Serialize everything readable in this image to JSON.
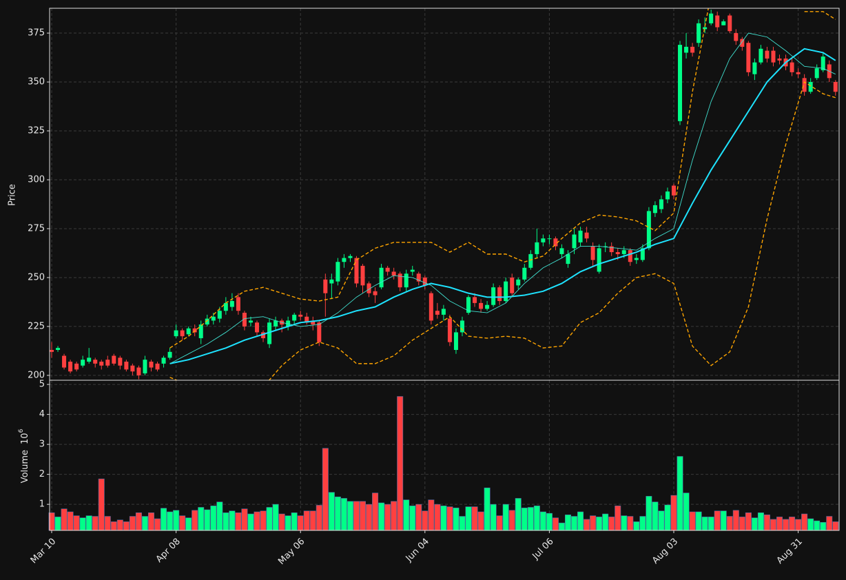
{
  "chart_data": {
    "type": "candlestick",
    "ylabel": "Price",
    "grid": true,
    "up_color": "#00ff88",
    "down_color": "#ff4040",
    "ylim": [
      197.5,
      387.7
    ],
    "yticks": [
      200,
      225,
      250,
      275,
      300,
      325,
      350,
      375
    ],
    "categories": [
      "Mar 10",
      null,
      null,
      null,
      null,
      null,
      null,
      null,
      null,
      null,
      null,
      null,
      null,
      null,
      null,
      null,
      null,
      null,
      null,
      null,
      "Apr 08",
      null,
      null,
      null,
      null,
      null,
      null,
      null,
      null,
      null,
      null,
      null,
      null,
      null,
      null,
      null,
      null,
      null,
      null,
      null,
      "May 06",
      null,
      null,
      null,
      null,
      null,
      null,
      null,
      null,
      null,
      null,
      null,
      null,
      null,
      null,
      null,
      null,
      null,
      null,
      null,
      "Jun 04",
      null,
      null,
      null,
      null,
      null,
      null,
      null,
      null,
      null,
      null,
      null,
      null,
      null,
      null,
      null,
      null,
      null,
      null,
      null,
      "Jul 06",
      null,
      null,
      null,
      null,
      null,
      null,
      null,
      null,
      null,
      null,
      null,
      null,
      null,
      null,
      null,
      null,
      null,
      null,
      null,
      "Aug 03",
      null,
      null,
      null,
      null,
      null,
      null,
      null,
      null,
      null,
      null,
      null,
      null,
      null,
      null,
      null,
      null,
      null,
      null,
      null,
      "Aug 31",
      null,
      null,
      null,
      null,
      null,
      null
    ],
    "open": [
      213,
      213,
      210,
      207,
      206,
      205,
      207,
      208,
      207,
      208,
      210,
      209,
      207,
      205,
      204,
      201,
      207,
      206,
      206,
      209,
      220,
      223,
      221,
      224,
      219,
      226,
      228,
      229,
      233,
      235,
      240,
      232,
      227,
      227,
      222,
      216,
      225,
      228,
      225,
      228,
      231,
      230,
      228,
      227,
      249,
      247,
      248,
      258,
      260,
      260,
      256,
      247,
      243,
      245,
      255,
      253,
      252,
      245,
      253,
      252,
      250,
      242,
      233,
      231,
      229,
      213,
      222,
      232,
      240,
      237,
      234,
      236,
      245,
      238,
      250,
      246,
      249,
      255,
      262,
      268,
      270,
      270,
      262,
      257,
      265,
      268,
      273,
      266,
      253,
      266,
      266,
      263,
      262,
      264,
      259,
      259,
      265,
      283,
      285,
      290,
      297,
      330,
      365,
      368,
      370,
      377,
      380,
      384,
      379,
      384,
      375,
      372,
      370,
      354,
      360,
      366,
      366,
      362,
      362,
      360,
      355,
      352,
      345,
      352,
      356,
      359,
      350
    ],
    "high": [
      217,
      215,
      211,
      208,
      207,
      210,
      214,
      209,
      208,
      210,
      211,
      210,
      208,
      206,
      205,
      210,
      208,
      207,
      210,
      214,
      226,
      224,
      225,
      226,
      228,
      231,
      232,
      235,
      240,
      242,
      242,
      233,
      230,
      228,
      223,
      229,
      230,
      229,
      230,
      232,
      233,
      232,
      230,
      228,
      252,
      252,
      260,
      262,
      262,
      261,
      257,
      248,
      245,
      257,
      256,
      255,
      253,
      254,
      256,
      253,
      251,
      243,
      237,
      236,
      231,
      224,
      230,
      241,
      242,
      239,
      238,
      247,
      246,
      250,
      252,
      250,
      257,
      264,
      275,
      272,
      272,
      271,
      267,
      264,
      275,
      276,
      276,
      268,
      267,
      268,
      268,
      265,
      266,
      265,
      262,
      267,
      286,
      289,
      292,
      296,
      298,
      371,
      375,
      370,
      382,
      383,
      387,
      386,
      382,
      385,
      377,
      373,
      371,
      362,
      369,
      368,
      368,
      364,
      364,
      362,
      357,
      354,
      352,
      359,
      365,
      361,
      351
    ],
    "low": [
      209,
      212,
      203,
      201,
      202,
      204,
      206,
      204,
      203,
      204,
      205,
      203,
      202,
      200,
      198,
      200,
      202,
      202,
      204,
      208,
      219,
      218,
      220,
      220,
      216,
      225,
      226,
      227,
      231,
      233,
      231,
      223,
      225,
      220,
      217,
      214,
      223,
      222,
      223,
      226,
      228,
      226,
      223,
      215,
      230,
      239,
      246,
      255,
      258,
      245,
      242,
      240,
      237,
      244,
      251,
      249,
      243,
      243,
      251,
      246,
      244,
      226,
      229,
      228,
      215,
      211,
      220,
      231,
      235,
      232,
      233,
      235,
      236,
      237,
      240,
      244,
      248,
      254,
      260,
      266,
      267,
      264,
      260,
      255,
      262,
      266,
      268,
      256,
      252,
      263,
      261,
      259,
      260,
      256,
      257,
      258,
      264,
      281,
      283,
      288,
      290,
      328,
      362,
      363,
      368,
      375,
      379,
      376,
      379,
      375,
      369,
      366,
      353,
      351,
      359,
      360,
      358,
      359,
      356,
      353,
      352,
      343,
      344,
      351,
      355,
      350,
      343
    ],
    "close": [
      212,
      214,
      204,
      202,
      203,
      208,
      209,
      206,
      205,
      205,
      206,
      205,
      203,
      202,
      200,
      208,
      204,
      203,
      209,
      212,
      223,
      220,
      224,
      222,
      226,
      229,
      230,
      233,
      237,
      238,
      233,
      225,
      228,
      222,
      219,
      227,
      228,
      226,
      228,
      231,
      230,
      227,
      226,
      217,
      242,
      249,
      258,
      260,
      261,
      247,
      246,
      242,
      241,
      255,
      253,
      251,
      245,
      252,
      254,
      248,
      246,
      228,
      231,
      234,
      217,
      222,
      228,
      240,
      237,
      234,
      236,
      245,
      238,
      248,
      242,
      249,
      255,
      262,
      268,
      270,
      270,
      266,
      265,
      262,
      272,
      274,
      270,
      259,
      265,
      266,
      263,
      262,
      264,
      258,
      260,
      265,
      284,
      287,
      290,
      294,
      292,
      369,
      368,
      365,
      380,
      378,
      385,
      378,
      381,
      376,
      371,
      368,
      355,
      360,
      367,
      362,
      360,
      361,
      358,
      355,
      354,
      345,
      350,
      357,
      363,
      352,
      345
    ],
    "lines": [
      {
        "color": "#1ee3ff",
        "linestyle": "solid",
        "x": [
          19,
          22,
          25,
          28,
          31,
          34,
          37,
          40,
          43,
          46,
          49,
          52,
          55,
          58,
          61,
          64,
          67,
          70,
          73,
          76,
          79,
          82,
          85,
          88,
          91,
          94,
          97,
          100,
          103,
          106,
          109,
          112,
          115,
          118,
          121,
          124,
          126
        ],
        "values": [
          206,
          208,
          211,
          214,
          218,
          221,
          224,
          227,
          228,
          230,
          233,
          235,
          240,
          244,
          247,
          245,
          242,
          240,
          240,
          241,
          243,
          247,
          253,
          257,
          260,
          263,
          267,
          270,
          288,
          305,
          320,
          335,
          350,
          360,
          367,
          365,
          361
        ]
      },
      {
        "color": "#40e0d0",
        "linestyle": "solid",
        "x": [
          19,
          22,
          25,
          28,
          31,
          34,
          37,
          40,
          43,
          46,
          49,
          52,
          55,
          58,
          61,
          64,
          67,
          70,
          73,
          76,
          79,
          82,
          85,
          88,
          91,
          94,
          97,
          100,
          103,
          106,
          109,
          112,
          115,
          118,
          121,
          124,
          126
        ],
        "values": [
          206,
          211,
          216,
          222,
          229,
          230,
          227,
          225,
          226,
          232,
          240,
          246,
          251,
          250,
          246,
          238,
          233,
          232,
          237,
          247,
          255,
          260,
          266,
          266,
          265,
          264,
          270,
          275,
          310,
          340,
          362,
          375,
          373,
          366,
          358,
          357,
          354
        ]
      },
      {
        "color": "#ffa500",
        "linestyle": "dashed",
        "x": [
          19,
          22,
          25,
          28,
          31,
          34,
          37,
          40,
          43,
          46,
          49,
          52,
          55,
          58,
          61,
          64,
          67,
          70,
          73,
          76,
          79,
          82,
          85,
          88,
          91,
          94,
          97,
          100,
          103,
          106,
          109,
          112,
          115,
          118,
          121,
          124,
          126
        ],
        "values": [
          214,
          220,
          228,
          237,
          243,
          245,
          242,
          239,
          238,
          240,
          259,
          265,
          268,
          268,
          268,
          263,
          268,
          262,
          262,
          258,
          261,
          270,
          278,
          282,
          281,
          279,
          274,
          283,
          345,
          395,
          null,
          null,
          null,
          null,
          386,
          386,
          382
        ]
      },
      {
        "color": "#ffa500",
        "linestyle": "dashed",
        "x": [
          19,
          22,
          25,
          28,
          31,
          34,
          37,
          40,
          43,
          46,
          49,
          52,
          55,
          58,
          61,
          64,
          67,
          70,
          73,
          76,
          79,
          82,
          85,
          88,
          91,
          94,
          97,
          100,
          103,
          106,
          109,
          112,
          115,
          118,
          121,
          124,
          126
        ],
        "values": [
          199,
          195,
          190,
          187,
          188,
          194,
          205,
          213,
          217,
          214,
          206,
          206,
          210,
          218,
          224,
          230,
          220,
          219,
          220,
          219,
          214,
          215,
          227,
          232,
          242,
          250,
          252,
          247,
          215,
          205,
          212,
          235,
          280,
          318,
          350,
          344,
          342
        ]
      }
    ],
    "volume": {
      "ylabel": "Volume",
      "scale_label": "10",
      "scale_exponent": "6",
      "ylim": [
        0.13,
        5.14
      ],
      "yticks": [
        1,
        2,
        3,
        4,
        5
      ],
      "values": [
        0.72,
        0.58,
        0.85,
        0.75,
        0.62,
        0.55,
        0.62,
        0.6,
        1.85,
        0.6,
        0.42,
        0.48,
        0.42,
        0.6,
        0.72,
        0.6,
        0.72,
        0.52,
        0.87,
        0.75,
        0.8,
        0.62,
        0.55,
        0.8,
        0.9,
        0.82,
        0.95,
        1.08,
        0.72,
        0.78,
        0.72,
        0.85,
        0.68,
        0.75,
        0.78,
        0.9,
        1.0,
        0.68,
        0.62,
        0.72,
        0.62,
        0.78,
        0.78,
        0.97,
        2.87,
        1.4,
        1.25,
        1.2,
        1.1,
        1.1,
        1.1,
        1.0,
        1.38,
        1.05,
        1.0,
        1.1,
        4.6,
        1.15,
        0.95,
        1.0,
        0.78,
        1.15,
        1.0,
        0.95,
        0.92,
        0.88,
        0.6,
        0.92,
        0.92,
        0.75,
        1.55,
        1.0,
        0.62,
        1.0,
        0.8,
        1.2,
        0.88,
        0.9,
        0.95,
        0.75,
        0.7,
        0.55,
        0.38,
        0.65,
        0.6,
        0.75,
        0.5,
        0.62,
        0.58,
        0.68,
        0.58,
        0.95,
        0.62,
        0.6,
        0.42,
        0.6,
        1.27,
        1.08,
        0.78,
        0.98,
        1.3,
        2.6,
        1.38,
        0.75,
        0.75,
        0.58,
        0.58,
        0.78,
        0.78,
        0.6,
        0.8,
        0.58,
        0.72,
        0.55,
        0.72,
        0.65,
        0.5,
        0.58,
        0.5,
        0.58,
        0.5,
        0.68,
        0.52,
        0.45,
        0.4,
        0.6,
        0.42
      ]
    }
  }
}
